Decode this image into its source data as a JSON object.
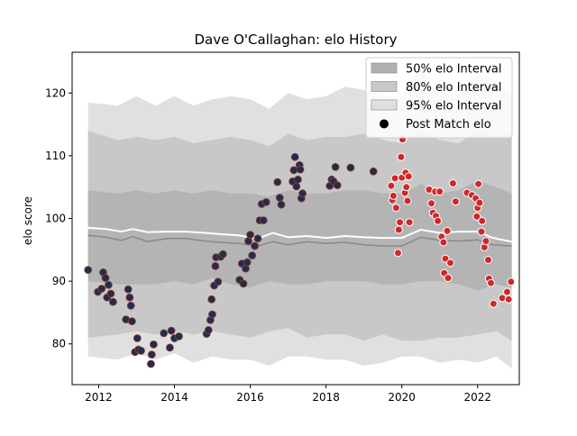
{
  "chart_data": {
    "type": "scatter",
    "title": "Dave O'Callaghan: elo History",
    "xlabel": "",
    "ylabel": "elo score",
    "xlim": [
      2011.3,
      2023.1
    ],
    "ylim": [
      73.5,
      126.5
    ],
    "x_ticks": [
      2012,
      2014,
      2016,
      2018,
      2020,
      2022
    ],
    "y_ticks": [
      80,
      90,
      100,
      110,
      120
    ],
    "legend": {
      "position": "top-right",
      "entries": [
        {
          "label": "50% elo Interval",
          "color": "#b0b0b0",
          "kind": "patch"
        },
        {
          "label": "80% elo Interval",
          "color": "#c8c8c8",
          "kind": "patch"
        },
        {
          "label": "95% elo Interval",
          "color": "#e0e0e0",
          "kind": "patch"
        },
        {
          "label": "Post Match elo",
          "color": "#000000",
          "kind": "marker"
        }
      ]
    },
    "colors": {
      "band95": "#e0e0e0",
      "band80": "#c8c8c8",
      "band50": "#b4b4b4",
      "mean_line": "#888888",
      "white_line": "#ffffff",
      "dark_point": "#1f2f4a",
      "dark_edge": "#a03a3a",
      "red_point": "#d02828",
      "red_edge": "#ffffff"
    },
    "series": [
      {
        "role": "band95",
        "x": [
          2011.72,
          2012.5,
          2013.0,
          2013.5,
          2014.0,
          2014.5,
          2015.0,
          2015.5,
          2016.0,
          2016.5,
          2017.0,
          2017.5,
          2018.0,
          2018.5,
          2019.0,
          2019.5,
          2020.0,
          2020.5,
          2021.0,
          2021.5,
          2022.0,
          2022.5,
          2022.9
        ],
        "upper": [
          118.5,
          118.0,
          119.5,
          118.0,
          119.5,
          118.0,
          119.0,
          119.5,
          119.0,
          117.5,
          120.0,
          119.0,
          119.5,
          121.0,
          120.5,
          119.5,
          119.5,
          124.0,
          119.5,
          120.0,
          123.0,
          122.0,
          119.5
        ],
        "lower": [
          78.0,
          77.5,
          78.5,
          77.5,
          78.5,
          77.0,
          78.0,
          77.5,
          77.5,
          76.5,
          78.0,
          78.0,
          77.5,
          77.5,
          76.5,
          77.0,
          78.0,
          78.0,
          77.0,
          77.5,
          77.0,
          78.0,
          76.0
        ]
      },
      {
        "role": "band80",
        "x": [
          2011.72,
          2012.5,
          2013.0,
          2013.5,
          2014.0,
          2014.5,
          2015.0,
          2015.5,
          2016.0,
          2016.5,
          2017.0,
          2017.5,
          2018.0,
          2018.5,
          2019.0,
          2019.5,
          2020.0,
          2020.5,
          2021.0,
          2021.5,
          2022.0,
          2022.5,
          2022.9
        ],
        "upper": [
          114.0,
          112.5,
          113.0,
          112.5,
          113.0,
          112.0,
          112.5,
          113.0,
          112.5,
          111.5,
          113.5,
          112.5,
          113.0,
          113.0,
          113.5,
          112.5,
          112.0,
          114.0,
          112.5,
          112.0,
          114.0,
          113.0,
          113.5
        ],
        "lower": [
          81.0,
          81.5,
          82.0,
          81.5,
          82.0,
          81.5,
          82.0,
          81.5,
          81.0,
          82.0,
          82.5,
          81.0,
          81.5,
          81.5,
          80.5,
          81.5,
          80.5,
          80.5,
          81.0,
          81.0,
          81.5,
          82.0,
          80.5
        ]
      },
      {
        "role": "band50",
        "x": [
          2011.72,
          2012.5,
          2013.0,
          2013.5,
          2014.0,
          2014.5,
          2015.0,
          2015.5,
          2016.0,
          2016.5,
          2017.0,
          2017.5,
          2018.0,
          2018.5,
          2019.0,
          2019.5,
          2020.0,
          2020.5,
          2021.0,
          2021.5,
          2022.0,
          2022.5,
          2022.9
        ],
        "upper": [
          104.5,
          104.0,
          104.5,
          104.0,
          104.5,
          104.0,
          104.5,
          104.0,
          104.0,
          103.5,
          104.5,
          104.0,
          104.0,
          104.5,
          104.5,
          104.0,
          104.0,
          105.5,
          104.0,
          104.5,
          106.0,
          105.0,
          104.0
        ],
        "lower": [
          90.0,
          89.5,
          89.5,
          89.5,
          90.0,
          89.5,
          90.5,
          89.5,
          89.0,
          90.0,
          89.5,
          89.5,
          90.0,
          90.0,
          90.0,
          89.5,
          89.5,
          90.0,
          90.0,
          89.5,
          88.5,
          89.5,
          89.0
        ]
      },
      {
        "role": "mean_line",
        "x": [
          2011.72,
          2012.2,
          2012.6,
          2012.9,
          2013.3,
          2013.8,
          2014.3,
          2014.8,
          2015.2,
          2015.7,
          2016.2,
          2016.6,
          2017.0,
          2017.5,
          2018.0,
          2018.5,
          2019.0,
          2019.5,
          2020.0,
          2020.5,
          2021.0,
          2021.5,
          2022.0,
          2022.4,
          2022.9
        ],
        "y": [
          97.3,
          97.0,
          96.5,
          97.1,
          96.3,
          96.8,
          96.8,
          96.4,
          96.2,
          96.0,
          95.6,
          96.3,
          95.8,
          96.3,
          96.0,
          96.2,
          95.8,
          95.6,
          95.6,
          97.0,
          96.5,
          96.4,
          96.6,
          95.8,
          95.6
        ]
      },
      {
        "role": "white_line",
        "x": [
          2011.72,
          2012.2,
          2012.6,
          2012.9,
          2013.3,
          2013.8,
          2014.3,
          2014.8,
          2015.2,
          2015.7,
          2016.2,
          2016.6,
          2017.0,
          2017.5,
          2018.0,
          2018.5,
          2019.0,
          2019.5,
          2020.0,
          2020.5,
          2021.0,
          2021.5,
          2022.0,
          2022.4,
          2022.9
        ],
        "y": [
          98.5,
          98.3,
          97.9,
          98.3,
          97.8,
          97.9,
          97.9,
          97.7,
          97.5,
          97.3,
          96.8,
          97.7,
          97.0,
          97.2,
          96.9,
          97.2,
          97.0,
          96.9,
          96.9,
          98.2,
          97.7,
          97.9,
          97.9,
          96.9,
          96.3
        ]
      },
      {
        "name": "Post Match elo",
        "role": "points_dark",
        "points": [
          [
            2011.72,
            91.8
          ],
          [
            2011.98,
            88.3
          ],
          [
            2012.08,
            88.8
          ],
          [
            2012.12,
            91.4
          ],
          [
            2012.18,
            90.5
          ],
          [
            2012.22,
            87.4
          ],
          [
            2012.26,
            89.4
          ],
          [
            2012.32,
            88.0
          ],
          [
            2012.38,
            86.7
          ],
          [
            2012.72,
            83.9
          ],
          [
            2012.78,
            88.7
          ],
          [
            2012.82,
            87.4
          ],
          [
            2012.85,
            86.1
          ],
          [
            2012.88,
            83.6
          ],
          [
            2012.96,
            78.7
          ],
          [
            2013.02,
            80.9
          ],
          [
            2013.05,
            79.1
          ],
          [
            2013.12,
            78.9
          ],
          [
            2013.38,
            76.8
          ],
          [
            2013.4,
            78.3
          ],
          [
            2013.45,
            79.9
          ],
          [
            2013.72,
            81.7
          ],
          [
            2013.88,
            79.4
          ],
          [
            2013.92,
            82.1
          ],
          [
            2014.0,
            80.9
          ],
          [
            2014.12,
            81.2
          ],
          [
            2014.85,
            81.6
          ],
          [
            2014.9,
            82.2
          ],
          [
            2014.95,
            83.8
          ],
          [
            2014.98,
            87.1
          ],
          [
            2015.0,
            84.7
          ],
          [
            2015.05,
            89.3
          ],
          [
            2015.08,
            92.4
          ],
          [
            2015.1,
            93.8
          ],
          [
            2015.15,
            89.9
          ],
          [
            2015.22,
            93.9
          ],
          [
            2015.28,
            94.3
          ],
          [
            2015.72,
            90.2
          ],
          [
            2015.78,
            92.8
          ],
          [
            2015.82,
            89.6
          ],
          [
            2015.88,
            92.0
          ],
          [
            2015.92,
            93.0
          ],
          [
            2015.95,
            96.4
          ],
          [
            2016.0,
            97.4
          ],
          [
            2016.05,
            94.1
          ],
          [
            2016.12,
            95.6
          ],
          [
            2016.2,
            96.8
          ],
          [
            2016.25,
            99.7
          ],
          [
            2016.3,
            102.3
          ],
          [
            2016.35,
            99.7
          ],
          [
            2016.42,
            102.6
          ],
          [
            2016.72,
            105.8
          ],
          [
            2016.78,
            103.3
          ],
          [
            2016.82,
            102.2
          ],
          [
            2017.12,
            105.9
          ],
          [
            2017.15,
            107.7
          ],
          [
            2017.18,
            109.8
          ],
          [
            2017.22,
            105.1
          ],
          [
            2017.26,
            106.2
          ],
          [
            2017.3,
            108.5
          ],
          [
            2017.32,
            107.8
          ],
          [
            2017.35,
            103.2
          ],
          [
            2017.38,
            104.0
          ],
          [
            2018.1,
            105.2
          ],
          [
            2018.15,
            106.2
          ],
          [
            2018.2,
            105.9
          ],
          [
            2018.25,
            108.2
          ],
          [
            2018.3,
            105.3
          ],
          [
            2018.65,
            108.1
          ],
          [
            2019.25,
            107.5
          ]
        ]
      },
      {
        "name": "Post Match elo",
        "role": "points_red",
        "points": [
          [
            2019.72,
            105.2
          ],
          [
            2019.75,
            102.9
          ],
          [
            2019.78,
            103.6
          ],
          [
            2019.82,
            106.4
          ],
          [
            2019.85,
            101.7
          ],
          [
            2019.9,
            94.5
          ],
          [
            2019.92,
            98.2
          ],
          [
            2019.95,
            99.4
          ],
          [
            2019.98,
            109.8
          ],
          [
            2020.0,
            106.5
          ],
          [
            2020.02,
            112.6
          ],
          [
            2020.08,
            104.1
          ],
          [
            2020.1,
            107.3
          ],
          [
            2020.12,
            105.0
          ],
          [
            2020.15,
            102.8
          ],
          [
            2020.18,
            106.7
          ],
          [
            2020.2,
            99.4
          ],
          [
            2020.72,
            104.6
          ],
          [
            2020.78,
            102.4
          ],
          [
            2020.82,
            100.9
          ],
          [
            2020.88,
            104.3
          ],
          [
            2020.9,
            100.4
          ],
          [
            2020.95,
            99.6
          ],
          [
            2021.0,
            104.3
          ],
          [
            2021.05,
            97.1
          ],
          [
            2021.1,
            96.2
          ],
          [
            2021.12,
            91.3
          ],
          [
            2021.15,
            93.6
          ],
          [
            2021.2,
            98.0
          ],
          [
            2021.22,
            90.5
          ],
          [
            2021.28,
            92.9
          ],
          [
            2021.35,
            105.6
          ],
          [
            2021.42,
            102.7
          ],
          [
            2021.72,
            104.1
          ],
          [
            2021.85,
            103.7
          ],
          [
            2021.95,
            103.2
          ],
          [
            2021.98,
            100.3
          ],
          [
            2022.0,
            101.7
          ],
          [
            2022.02,
            105.5
          ],
          [
            2022.05,
            102.5
          ],
          [
            2022.1,
            97.9
          ],
          [
            2022.12,
            99.6
          ],
          [
            2022.18,
            95.4
          ],
          [
            2022.22,
            96.4
          ],
          [
            2022.28,
            93.4
          ],
          [
            2022.3,
            90.4
          ],
          [
            2022.35,
            89.7
          ],
          [
            2022.42,
            86.4
          ],
          [
            2022.65,
            87.3
          ],
          [
            2022.78,
            88.3
          ],
          [
            2022.82,
            87.1
          ],
          [
            2022.88,
            89.9
          ]
        ]
      }
    ]
  }
}
